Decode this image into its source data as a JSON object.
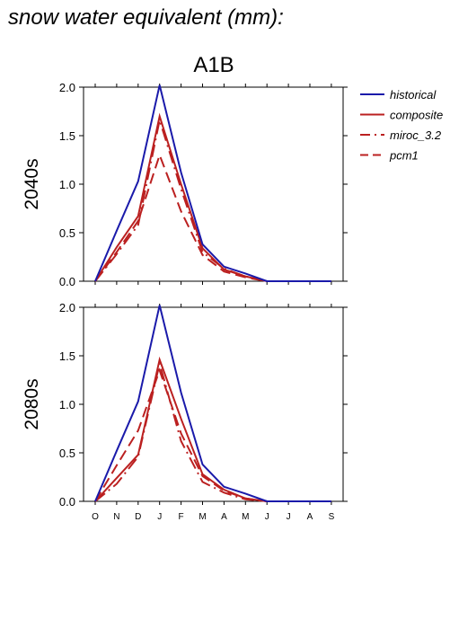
{
  "figure": {
    "title": "snow water equivalent (mm):",
    "scenario": "A1B"
  },
  "colors": {
    "historical": "#1a1aaa",
    "composite": "#bb2020",
    "axis": "#000000"
  },
  "legend": {
    "placement": "right",
    "items": [
      {
        "label": "historical",
        "style": "solid",
        "color": "#1a1aaa"
      },
      {
        "label": "composite",
        "style": "solid",
        "color": "#bb2020"
      },
      {
        "label": "miroc_3.2",
        "style": "dashdot",
        "color": "#bb2020"
      },
      {
        "label": "pcm1",
        "style": "dashed",
        "color": "#bb2020"
      }
    ]
  },
  "chart_data": [
    {
      "type": "line",
      "row_label": "2040s",
      "categories": [
        "O",
        "N",
        "D",
        "J",
        "F",
        "M",
        "A",
        "M",
        "J",
        "J",
        "A",
        "S"
      ],
      "ylim": [
        0,
        2.0
      ],
      "yticks": [
        "0.0",
        "0.5",
        "1.0",
        "1.5",
        "2.0"
      ],
      "show_x_labels": false,
      "series": [
        {
          "name": "historical",
          "style": "solid",
          "values": [
            0.0,
            0.52,
            1.03,
            2.02,
            1.12,
            0.38,
            0.15,
            0.08,
            0.0,
            0.0,
            0.0,
            0.0
          ]
        },
        {
          "name": "composite",
          "style": "solid",
          "values": [
            0.0,
            0.35,
            0.67,
            1.7,
            1.0,
            0.34,
            0.12,
            0.05,
            0.0,
            0.0,
            0.0,
            0.0
          ]
        },
        {
          "name": "miroc_3.2",
          "style": "dashdot",
          "values": [
            0.0,
            0.28,
            0.58,
            1.66,
            0.95,
            0.3,
            0.13,
            0.05,
            0.0,
            0.0,
            0.0,
            0.0
          ]
        },
        {
          "name": "pcm1",
          "style": "dashed",
          "values": [
            0.0,
            0.3,
            0.62,
            1.3,
            0.72,
            0.27,
            0.1,
            0.04,
            0.0,
            0.0,
            0.0,
            0.0
          ]
        }
      ]
    },
    {
      "type": "line",
      "row_label": "2080s",
      "categories": [
        "O",
        "N",
        "D",
        "J",
        "F",
        "M",
        "A",
        "M",
        "J",
        "J",
        "A",
        "S"
      ],
      "ylim": [
        0,
        2.0
      ],
      "yticks": [
        "0.0",
        "0.5",
        "1.0",
        "1.5",
        "2.0"
      ],
      "show_x_labels": true,
      "series": [
        {
          "name": "historical",
          "style": "solid",
          "values": [
            0.0,
            0.52,
            1.03,
            2.02,
            1.12,
            0.38,
            0.15,
            0.08,
            0.0,
            0.0,
            0.0,
            0.0
          ]
        },
        {
          "name": "composite",
          "style": "solid",
          "values": [
            0.0,
            0.24,
            0.48,
            1.46,
            0.85,
            0.28,
            0.12,
            0.03,
            0.0,
            0.0,
            0.0,
            0.0
          ]
        },
        {
          "name": "miroc_3.2",
          "style": "dashdot",
          "values": [
            0.0,
            0.18,
            0.46,
            1.42,
            0.62,
            0.2,
            0.09,
            0.02,
            0.0,
            0.0,
            0.0,
            0.0
          ]
        },
        {
          "name": "pcm1",
          "style": "dashed",
          "values": [
            0.0,
            0.37,
            0.73,
            1.35,
            0.7,
            0.26,
            0.11,
            0.03,
            0.0,
            0.0,
            0.0,
            0.0
          ]
        }
      ]
    }
  ]
}
